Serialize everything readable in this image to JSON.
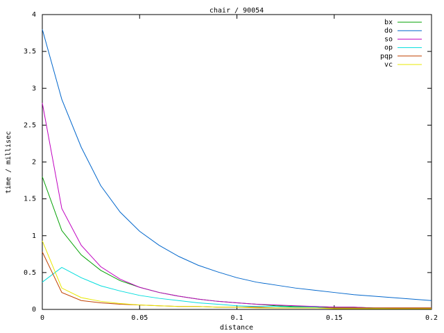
{
  "chart_data": {
    "type": "line",
    "title": "chair / 90054",
    "x_label": "distance",
    "y_label": "time / millisec",
    "x": [
      0,
      0.01,
      0.02,
      0.03,
      0.04,
      0.05,
      0.06,
      0.07,
      0.08,
      0.09,
      0.1,
      0.11,
      0.12,
      0.13,
      0.14,
      0.15,
      0.16,
      0.17,
      0.18,
      0.19,
      0.2
    ],
    "xlim": [
      0,
      0.2
    ],
    "xticks": [
      0,
      0.05,
      0.1,
      0.15,
      0.2
    ],
    "ylim": [
      0,
      4
    ],
    "yticks": [
      0,
      0.5,
      1,
      1.5,
      2,
      2.5,
      3,
      3.5,
      4
    ],
    "legend": "top-right",
    "series": [
      {
        "name": "bx",
        "color": "#00a000",
        "values": [
          1.8,
          1.07,
          0.74,
          0.53,
          0.39,
          0.3,
          0.23,
          0.18,
          0.14,
          0.11,
          0.09,
          0.07,
          0.05,
          0.04,
          0.04,
          0.03,
          0.03,
          0.02,
          0.02,
          0.02,
          0.02
        ]
      },
      {
        "name": "do",
        "color": "#0066cc",
        "values": [
          3.8,
          2.85,
          2.2,
          1.68,
          1.32,
          1.06,
          0.87,
          0.72,
          0.6,
          0.51,
          0.43,
          0.37,
          0.33,
          0.29,
          0.26,
          0.23,
          0.2,
          0.18,
          0.16,
          0.14,
          0.12
        ]
      },
      {
        "name": "so",
        "color": "#c000c0",
        "values": [
          2.8,
          1.37,
          0.87,
          0.58,
          0.41,
          0.3,
          0.23,
          0.18,
          0.14,
          0.11,
          0.09,
          0.07,
          0.06,
          0.05,
          0.04,
          0.03,
          0.03,
          0.02,
          0.02,
          0.02,
          0.02
        ]
      },
      {
        "name": "op",
        "color": "#00dddd",
        "values": [
          0.37,
          0.57,
          0.43,
          0.32,
          0.25,
          0.19,
          0.15,
          0.12,
          0.09,
          0.07,
          0.05,
          0.04,
          0.04,
          0.03,
          0.03,
          0.02,
          0.02,
          0.02,
          0.01,
          0.01,
          0.01
        ]
      },
      {
        "name": "pqp",
        "color": "#c04000",
        "values": [
          0.78,
          0.23,
          0.12,
          0.09,
          0.07,
          0.06,
          0.05,
          0.04,
          0.04,
          0.03,
          0.03,
          0.03,
          0.02,
          0.02,
          0.02,
          0.02,
          0.02,
          0.02,
          0.02,
          0.02,
          0.02
        ]
      },
      {
        "name": "vc",
        "color": "#e8e800",
        "values": [
          0.93,
          0.29,
          0.16,
          0.11,
          0.08,
          0.06,
          0.05,
          0.04,
          0.04,
          0.03,
          0.03,
          0.02,
          0.02,
          0.02,
          0.02,
          0.01,
          0.01,
          0.01,
          0.01,
          0.01,
          0.01
        ]
      }
    ]
  }
}
